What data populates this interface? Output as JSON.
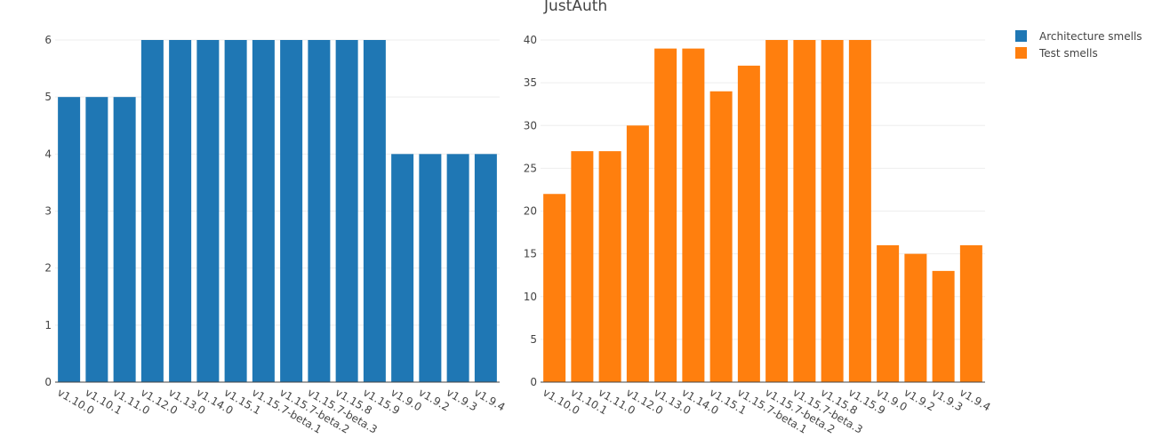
{
  "chart_data": {
    "title": "JustAuth",
    "legend_placement": "top-right",
    "grid": true,
    "categories": [
      "v1.10.0",
      "v1.10.1",
      "v1.11.0",
      "v1.12.0",
      "v1.13.0",
      "v1.14.0",
      "v1.15.1",
      "v1.15.7-beta.1",
      "v1.15.7-beta.2",
      "v1.15.7-beta.3",
      "v1.15.8",
      "v1.15.9",
      "v1.9.0",
      "v1.9.2",
      "v1.9.3",
      "v1.9.4"
    ],
    "subplots": [
      {
        "type": "bar",
        "series": [
          {
            "name": "Architecture smells",
            "color": "#1f77b4",
            "values": [
              5,
              5,
              5,
              6,
              6,
              6,
              6,
              6,
              6,
              6,
              6,
              6,
              4,
              4,
              4,
              4
            ]
          }
        ],
        "ylim": [
          0,
          6
        ],
        "yticks": [
          0,
          1,
          2,
          3,
          4,
          5,
          6
        ]
      },
      {
        "type": "bar",
        "series": [
          {
            "name": "Test smells",
            "color": "#ff7f0e",
            "values": [
              22,
              27,
              27,
              30,
              39,
              39,
              34,
              37,
              40,
              40,
              40,
              40,
              16,
              15,
              13,
              16
            ]
          }
        ],
        "ylim": [
          0,
          40
        ],
        "yticks": [
          0,
          5,
          10,
          15,
          20,
          25,
          30,
          35,
          40
        ]
      }
    ]
  }
}
